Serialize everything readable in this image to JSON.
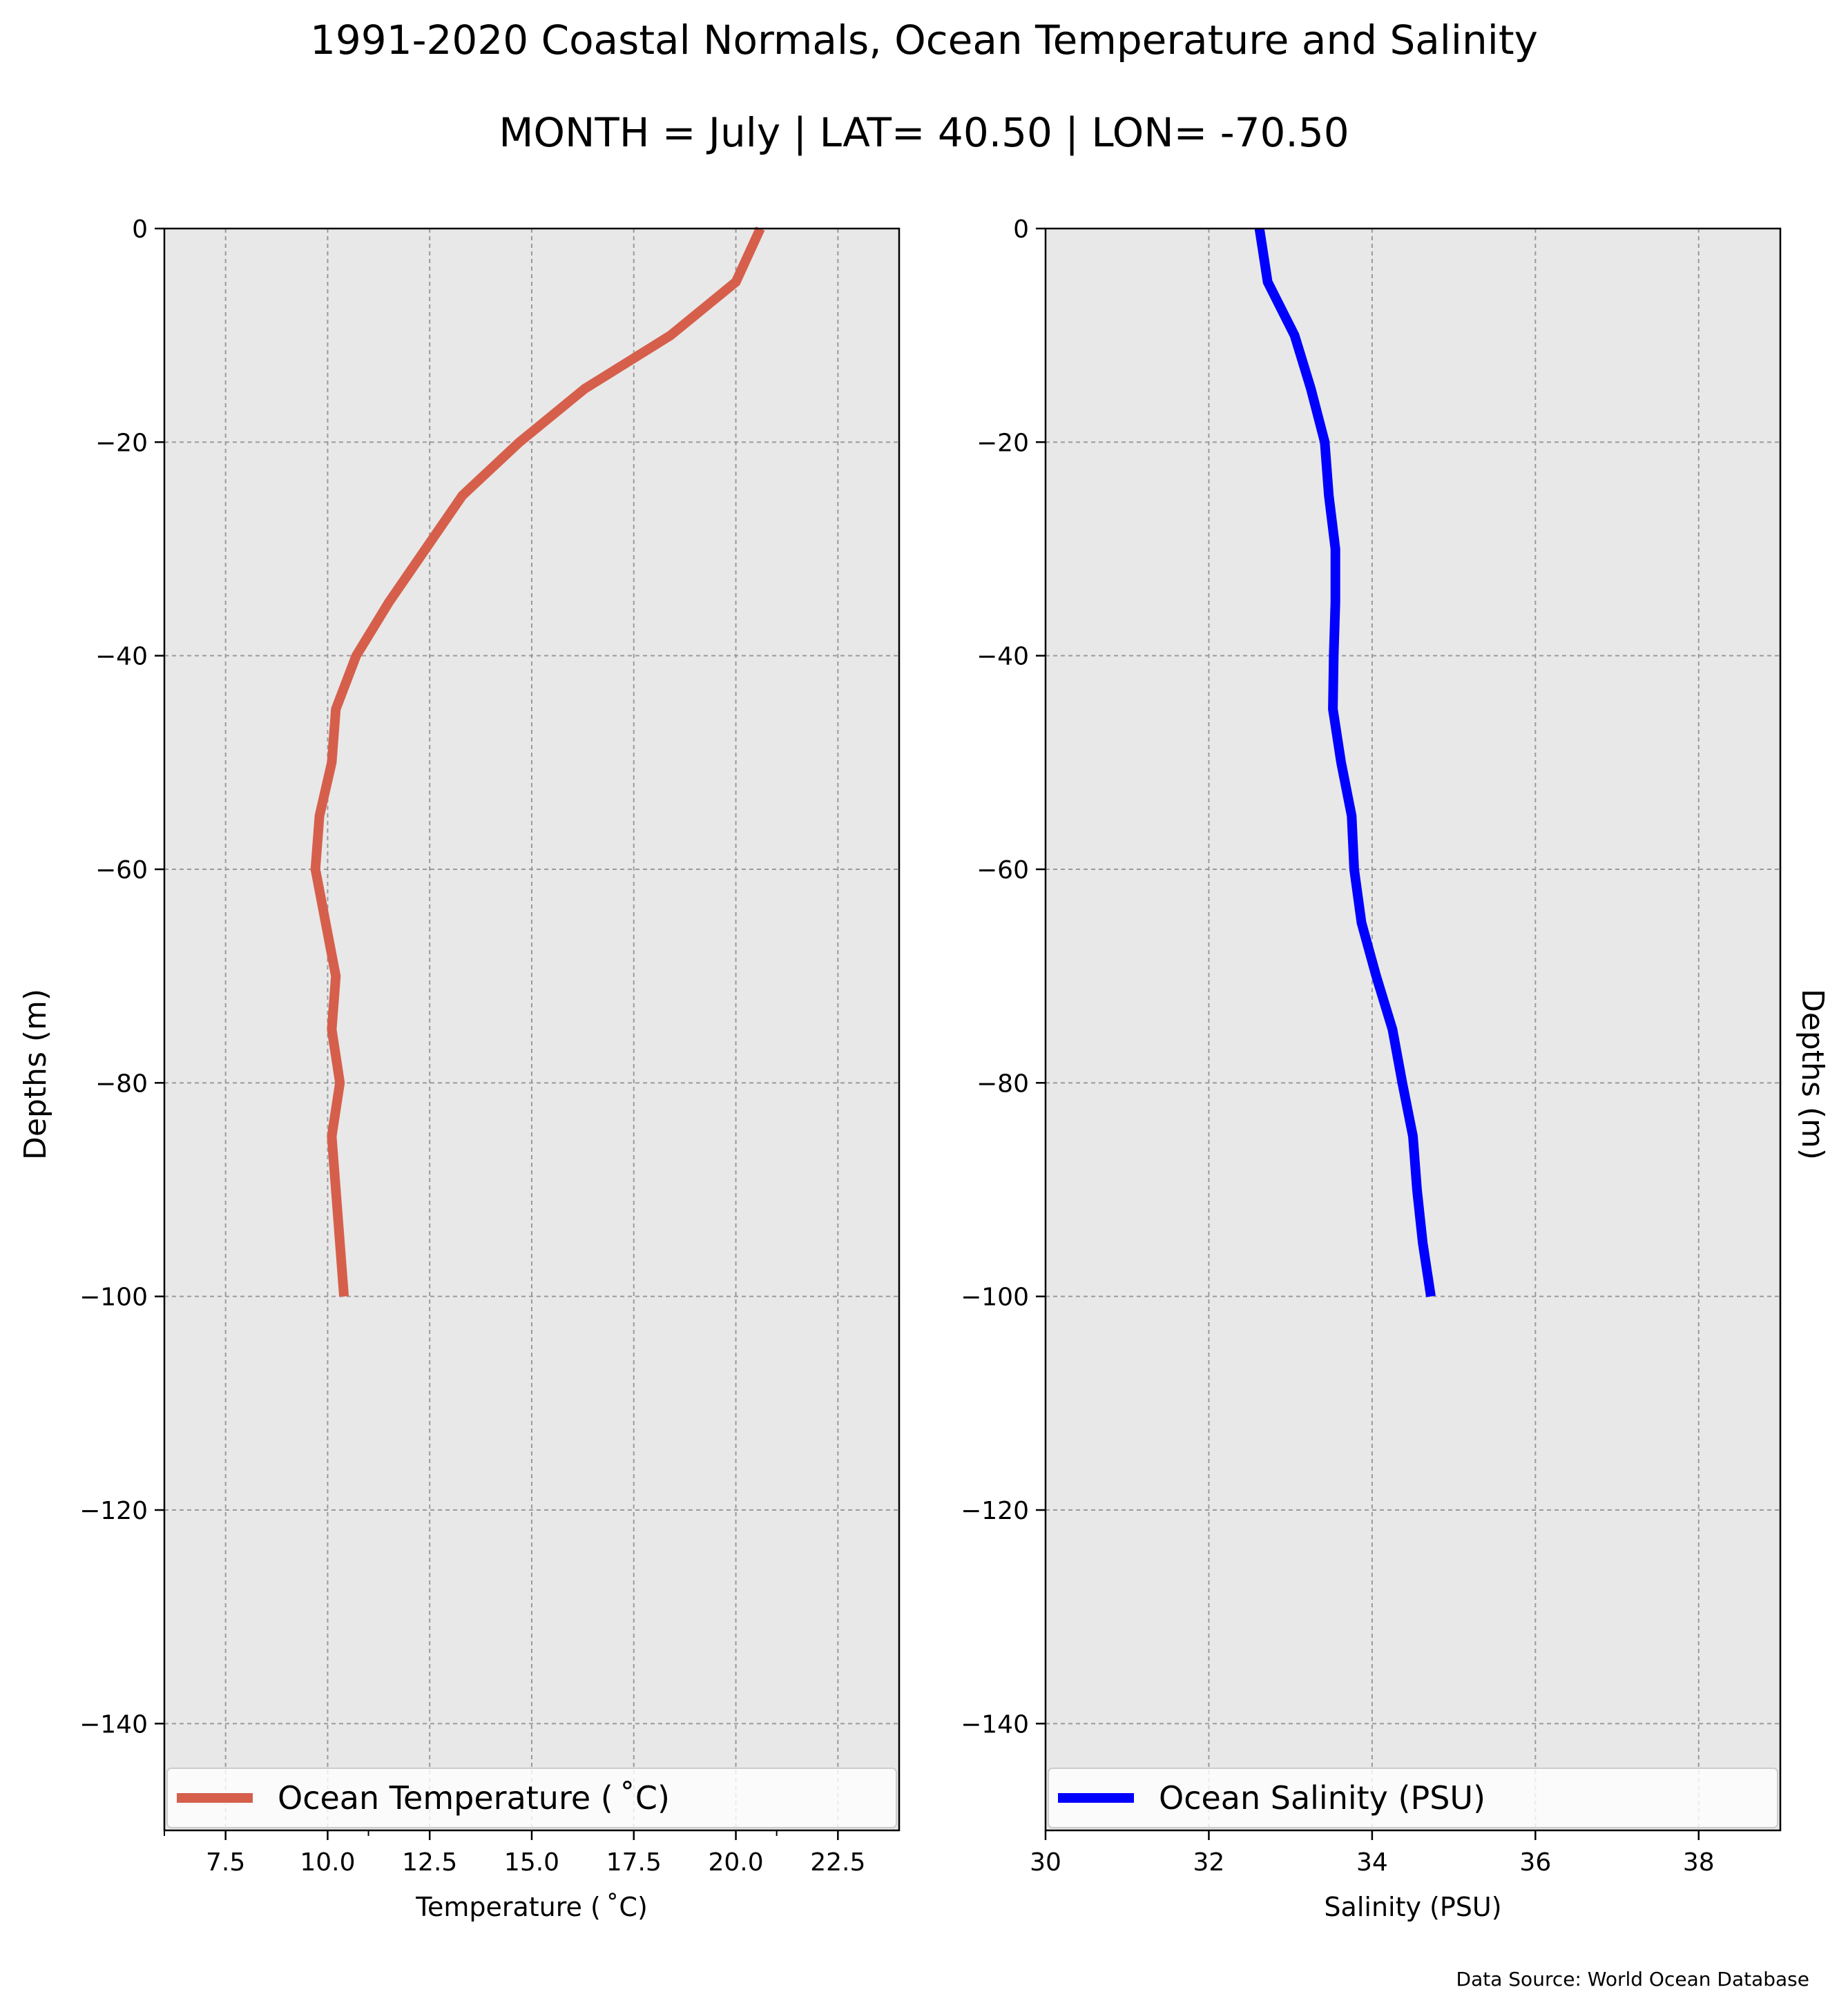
{
  "title": "1991-2020 Coastal Normals, Ocean Temperature and Salinity",
  "subtitle": "MONTH = July | LAT= 40.50 | LON= -70.50",
  "source": "Data Source: World Ocean Database",
  "chart_data": [
    {
      "type": "line",
      "xlabel": "Temperature ($^\\circ$C)",
      "xlabel_display": "Temperature ( ˚C)",
      "ylabel": "Depths (m)",
      "xlim": [
        6.0,
        24.0
      ],
      "ylim": [
        -150,
        0
      ],
      "xticks": [
        7.5,
        10.0,
        12.5,
        15.0,
        17.5,
        20.0,
        22.5
      ],
      "xtick_labels": [
        "7.5",
        "10.0",
        "12.5",
        "15.0",
        "17.5",
        "20.0",
        "22.5"
      ],
      "yticks": [
        0,
        -20,
        -40,
        -60,
        -80,
        -100,
        -120,
        -140
      ],
      "ytick_labels": [
        "0",
        "−20",
        "−40",
        "−60",
        "−80",
        "−100",
        "−120",
        "−140"
      ],
      "grid": true,
      "legend": "lower-center",
      "series": [
        {
          "name": "Ocean Temperature ( ˚C)",
          "color": "#d65f4c",
          "x": [
            20.6,
            20.0,
            18.4,
            16.3,
            14.7,
            13.3,
            12.4,
            11.5,
            10.7,
            10.2,
            10.1,
            9.8,
            9.7,
            10.2,
            10.1,
            10.3,
            10.1,
            10.2,
            10.3,
            10.4
          ],
          "y": [
            0,
            -5,
            -10,
            -15,
            -20,
            -25,
            -30,
            -35,
            -40,
            -45,
            -50,
            -55,
            -60,
            -70,
            -75,
            -80,
            -85,
            -90,
            -95,
            -100
          ]
        }
      ]
    },
    {
      "type": "line",
      "xlabel": "Salinity (PSU)",
      "ylabel": "Depths (m)",
      "xlim": [
        30,
        39
      ],
      "ylim": [
        -150,
        0
      ],
      "xticks": [
        30,
        32,
        34,
        36,
        38
      ],
      "xtick_labels": [
        "30",
        "32",
        "34",
        "36",
        "38"
      ],
      "yticks": [
        0,
        -20,
        -40,
        -60,
        -80,
        -100,
        -120,
        -140
      ],
      "ytick_labels": [
        "0",
        "−20",
        "−40",
        "−60",
        "−80",
        "−100",
        "−120",
        "−140"
      ],
      "grid": true,
      "legend": "lower-center",
      "series": [
        {
          "name": "Ocean Salinity (PSU)",
          "color": "#0000ff",
          "x": [
            32.62,
            32.72,
            33.05,
            33.25,
            33.42,
            33.47,
            33.55,
            33.55,
            33.53,
            33.52,
            33.62,
            33.75,
            33.78,
            33.87,
            34.05,
            34.25,
            34.37,
            34.5,
            34.55,
            34.62,
            34.72
          ],
          "y": [
            0,
            -5,
            -10,
            -15,
            -20,
            -25,
            -30,
            -35,
            -40,
            -45,
            -50,
            -55,
            -60,
            -65,
            -70,
            -75,
            -80,
            -85,
            -90,
            -95,
            -100
          ]
        }
      ]
    }
  ]
}
